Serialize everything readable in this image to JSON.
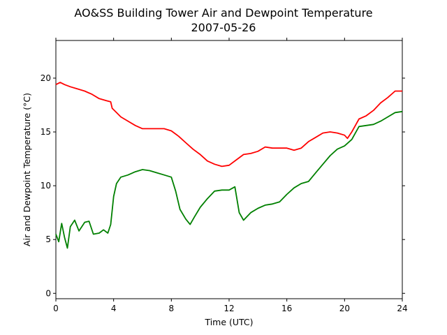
{
  "chart_data": {
    "type": "line",
    "title": "AO&SS Building Tower Air and Dewpoint Temperature",
    "subtitle": "2007-05-26",
    "xlabel": "Time (UTC)",
    "ylabel": "Air and Dewpoint Temperature (°C)",
    "xlim": [
      0,
      24
    ],
    "ylim": [
      -0.5,
      23.5
    ],
    "xticks": [
      0,
      4,
      8,
      12,
      16,
      20,
      24
    ],
    "yticks": [
      0,
      5,
      10,
      15,
      20
    ],
    "grid": false,
    "series": [
      {
        "color": "#ff0000",
        "points": [
          [
            0,
            19.4
          ],
          [
            0.3,
            19.6
          ],
          [
            0.6,
            19.4
          ],
          [
            1,
            19.2
          ],
          [
            1.5,
            19.0
          ],
          [
            2,
            18.8
          ],
          [
            2.5,
            18.5
          ],
          [
            3,
            18.1
          ],
          [
            3.5,
            17.9
          ],
          [
            3.8,
            17.8
          ],
          [
            3.9,
            17.2
          ],
          [
            4.2,
            16.8
          ],
          [
            4.5,
            16.4
          ],
          [
            5,
            16.0
          ],
          [
            5.5,
            15.6
          ],
          [
            6,
            15.3
          ],
          [
            6.5,
            15.3
          ],
          [
            7,
            15.3
          ],
          [
            7.5,
            15.3
          ],
          [
            8,
            15.1
          ],
          [
            8.5,
            14.6
          ],
          [
            9,
            14.0
          ],
          [
            9.5,
            13.4
          ],
          [
            10,
            12.9
          ],
          [
            10.5,
            12.3
          ],
          [
            11,
            12.0
          ],
          [
            11.5,
            11.8
          ],
          [
            12,
            11.9
          ],
          [
            12.5,
            12.4
          ],
          [
            13,
            12.9
          ],
          [
            13.5,
            13.0
          ],
          [
            14,
            13.2
          ],
          [
            14.5,
            13.6
          ],
          [
            15,
            13.5
          ],
          [
            15.5,
            13.5
          ],
          [
            16,
            13.5
          ],
          [
            16.5,
            13.3
          ],
          [
            17,
            13.5
          ],
          [
            17.5,
            14.1
          ],
          [
            18,
            14.5
          ],
          [
            18.5,
            14.9
          ],
          [
            19,
            15.0
          ],
          [
            19.5,
            14.9
          ],
          [
            20,
            14.7
          ],
          [
            20.2,
            14.4
          ],
          [
            20.5,
            15.0
          ],
          [
            21,
            16.2
          ],
          [
            21.5,
            16.5
          ],
          [
            22,
            17.0
          ],
          [
            22.5,
            17.7
          ],
          [
            23,
            18.2
          ],
          [
            23.5,
            18.8
          ],
          [
            24,
            18.8
          ]
        ]
      },
      {
        "color": "#008000",
        "points": [
          [
            0,
            5.5
          ],
          [
            0.2,
            4.8
          ],
          [
            0.4,
            6.5
          ],
          [
            0.6,
            5.2
          ],
          [
            0.8,
            4.2
          ],
          [
            1,
            6.2
          ],
          [
            1.3,
            6.8
          ],
          [
            1.6,
            5.8
          ],
          [
            2,
            6.6
          ],
          [
            2.3,
            6.7
          ],
          [
            2.6,
            5.5
          ],
          [
            3,
            5.6
          ],
          [
            3.3,
            5.9
          ],
          [
            3.6,
            5.6
          ],
          [
            3.8,
            6.4
          ],
          [
            4,
            9.0
          ],
          [
            4.2,
            10.2
          ],
          [
            4.5,
            10.8
          ],
          [
            5,
            11.0
          ],
          [
            5.5,
            11.3
          ],
          [
            6,
            11.5
          ],
          [
            6.5,
            11.4
          ],
          [
            7,
            11.2
          ],
          [
            7.5,
            11.0
          ],
          [
            8,
            10.8
          ],
          [
            8.3,
            9.5
          ],
          [
            8.6,
            7.8
          ],
          [
            9,
            6.9
          ],
          [
            9.3,
            6.4
          ],
          [
            9.6,
            7.1
          ],
          [
            10,
            8.0
          ],
          [
            10.5,
            8.8
          ],
          [
            11,
            9.5
          ],
          [
            11.5,
            9.6
          ],
          [
            12,
            9.6
          ],
          [
            12.4,
            9.9
          ],
          [
            12.7,
            7.5
          ],
          [
            13,
            6.8
          ],
          [
            13.5,
            7.5
          ],
          [
            14,
            7.9
          ],
          [
            14.5,
            8.2
          ],
          [
            15,
            8.3
          ],
          [
            15.5,
            8.5
          ],
          [
            16,
            9.2
          ],
          [
            16.5,
            9.8
          ],
          [
            17,
            10.2
          ],
          [
            17.5,
            10.4
          ],
          [
            18,
            11.2
          ],
          [
            18.5,
            12.0
          ],
          [
            19,
            12.8
          ],
          [
            19.5,
            13.4
          ],
          [
            20,
            13.7
          ],
          [
            20.5,
            14.3
          ],
          [
            21,
            15.5
          ],
          [
            21.5,
            15.6
          ],
          [
            22,
            15.7
          ],
          [
            22.5,
            16.0
          ],
          [
            23,
            16.4
          ],
          [
            23.5,
            16.8
          ],
          [
            24,
            16.9
          ]
        ]
      }
    ]
  }
}
